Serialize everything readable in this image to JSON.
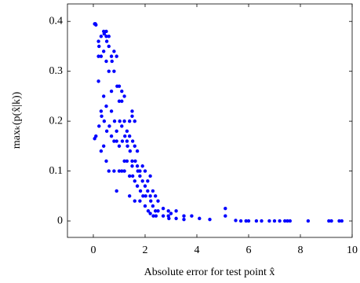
{
  "chart_data": {
    "type": "scatter",
    "x_label": "Absolute error for test point x̂",
    "y_label": "maxₖ(p(x̂|k))",
    "color": "#0000ff",
    "xlim": [
      -1,
      10
    ],
    "ylim": [
      -0.033,
      0.435
    ],
    "xticks": [
      0,
      2,
      4,
      6,
      8,
      10
    ],
    "yticks": [
      0,
      0.1,
      0.2,
      0.3,
      0.4
    ],
    "grid": false,
    "x": [
      0.05,
      0.08,
      0.1,
      0.05,
      0.1,
      0.2,
      0.2,
      0.22,
      0.2,
      0.22,
      0.3,
      0.3,
      0.3,
      0.32,
      0.3,
      0.4,
      0.42,
      0.4,
      0.4,
      0.42,
      0.4,
      0.5,
      0.5,
      0.52,
      0.5,
      0.5,
      0.52,
      0.5,
      0.6,
      0.6,
      0.6,
      0.62,
      0.6,
      0.7,
      0.72,
      0.7,
      0.7,
      0.7,
      0.8,
      0.8,
      0.82,
      0.8,
      0.8,
      0.9,
      0.92,
      0.9,
      0.9,
      0.9,
      1.0,
      1.0,
      1.02,
      1.0,
      1.0,
      1.1,
      1.1,
      1.1,
      1.12,
      1.1,
      1.2,
      1.2,
      1.22,
      1.2,
      1.2,
      1.3,
      1.3,
      1.32,
      1.3,
      1.4,
      1.4,
      1.42,
      1.4,
      1.4,
      1.5,
      1.5,
      1.52,
      1.5,
      1.5,
      1.52,
      1.6,
      1.6,
      1.62,
      1.6,
      1.6,
      1.7,
      1.7,
      1.72,
      1.7,
      1.8,
      1.8,
      1.82,
      1.8,
      1.9,
      1.9,
      1.92,
      2.0,
      2.0,
      2.02,
      2.0,
      2.1,
      2.1,
      2.12,
      2.2,
      2.2,
      2.22,
      2.2,
      2.3,
      2.3,
      2.32,
      2.4,
      2.4,
      2.42,
      2.5,
      2.5,
      2.7,
      2.7,
      2.9,
      2.9,
      2.92,
      3.0,
      3.2,
      3.2,
      3.5,
      3.5,
      3.8,
      4.1,
      4.5,
      5.1,
      5.1,
      5.5,
      5.7,
      5.9,
      6.0,
      6.3,
      6.5,
      6.8,
      7.0,
      7.2,
      7.4,
      7.5,
      7.6,
      8.3,
      9.1,
      9.2,
      9.5,
      9.6
    ],
    "values": [
      0.395,
      0.395,
      0.393,
      0.165,
      0.17,
      0.28,
      0.36,
      0.35,
      0.33,
      0.19,
      0.37,
      0.33,
      0.22,
      0.21,
      0.14,
      0.38,
      0.375,
      0.34,
      0.25,
      0.2,
      0.15,
      0.38,
      0.37,
      0.36,
      0.32,
      0.23,
      0.18,
      0.12,
      0.37,
      0.35,
      0.3,
      0.19,
      0.1,
      0.33,
      0.32,
      0.26,
      0.22,
      0.17,
      0.34,
      0.3,
      0.2,
      0.16,
      0.1,
      0.33,
      0.27,
      0.18,
      0.16,
      0.06,
      0.27,
      0.24,
      0.2,
      0.15,
      0.1,
      0.26,
      0.24,
      0.19,
      0.16,
      0.1,
      0.25,
      0.2,
      0.17,
      0.12,
      0.1,
      0.18,
      0.16,
      0.15,
      0.12,
      0.2,
      0.17,
      0.14,
      0.09,
      0.05,
      0.22,
      0.21,
      0.16,
      0.12,
      0.11,
      0.09,
      0.2,
      0.15,
      0.12,
      0.08,
      0.04,
      0.14,
      0.11,
      0.1,
      0.07,
      0.1,
      0.09,
      0.06,
      0.04,
      0.11,
      0.08,
      0.05,
      0.1,
      0.07,
      0.05,
      0.03,
      0.08,
      0.06,
      0.02,
      0.09,
      0.05,
      0.04,
      0.015,
      0.06,
      0.03,
      0.01,
      0.05,
      0.02,
      0.01,
      0.04,
      0.02,
      0.025,
      0.01,
      0.02,
      0.01,
      0.005,
      0.015,
      0.02,
      0.005,
      0.01,
      0.003,
      0.01,
      0.005,
      0.003,
      0.025,
      0.01,
      0.001,
      0,
      0,
      0,
      0,
      0,
      0,
      0,
      0,
      0,
      0,
      0,
      0,
      0,
      0,
      0,
      0
    ]
  }
}
